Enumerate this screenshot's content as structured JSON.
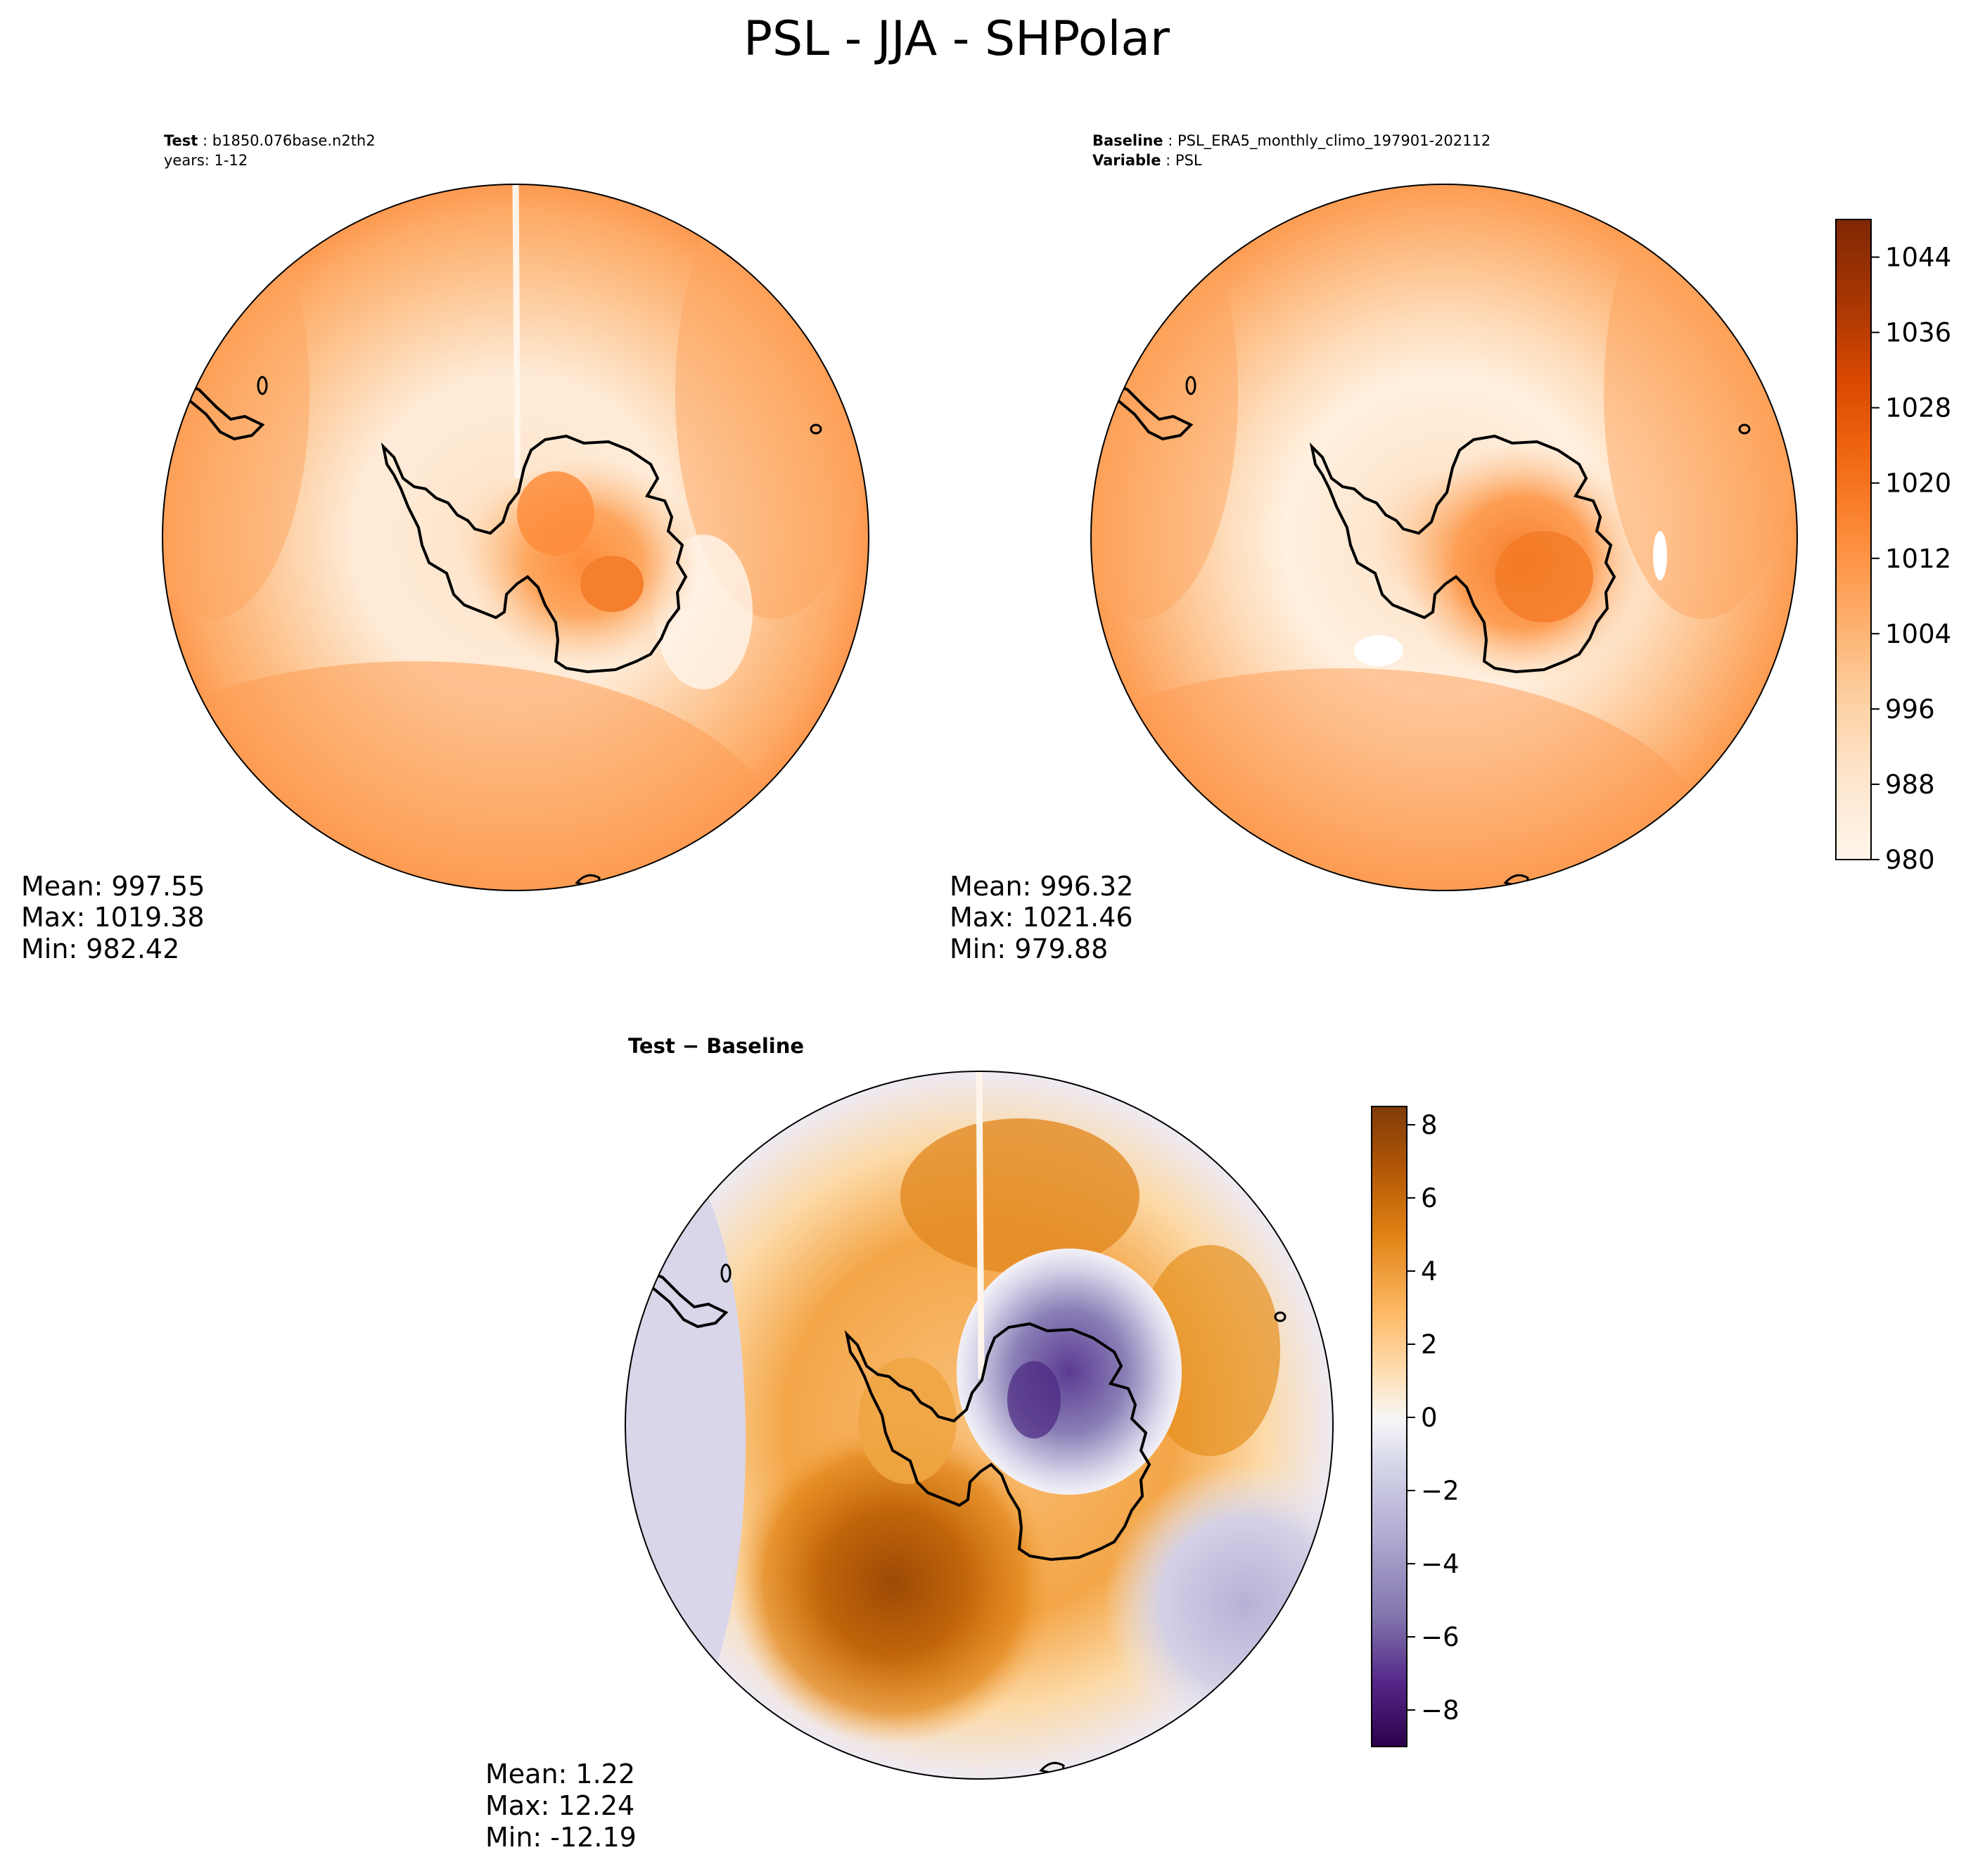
{
  "figure": {
    "title": "PSL - JJA - SHPolar"
  },
  "panels": [
    {
      "id": "test",
      "header_lines": [
        {
          "key": "Test",
          "value": "b1850.076base.n2th2"
        },
        {
          "key": "",
          "value": "years: 1-12"
        }
      ],
      "stats": {
        "mean": "Mean: 997.55",
        "max": "Max: 1019.38",
        "min": "Min: 982.42"
      }
    },
    {
      "id": "baseline",
      "header_lines": [
        {
          "key": "Baseline",
          "value": "PSL_ERA5_monthly_climo_197901-202112"
        },
        {
          "key": "Variable",
          "value": "PSL"
        }
      ],
      "stats": {
        "mean": "Mean: 996.32",
        "max": "Max: 1021.46",
        "min": "Min: 979.88"
      }
    },
    {
      "id": "diff",
      "header_lines": [
        {
          "key": "Test − Baseline",
          "value": ""
        }
      ],
      "stats": {
        "mean": "Mean:  1.22",
        "max": "Max: 12.24",
        "min": "Min: -12.19"
      }
    }
  ],
  "chart_data": [
    {
      "type": "heatmap",
      "projection": "south-polar-stereographic",
      "title": "",
      "colormap": "Oranges",
      "colorbar": {
        "ticks": [
          "980",
          "988",
          "996",
          "1004",
          "1012",
          "1020",
          "1028",
          "1036",
          "1044"
        ],
        "range": [
          980,
          1048
        ],
        "levels": 34
      },
      "field_description_levels_hPa": {
        "outer_ring": 1008,
        "mid_latitudes": 992,
        "interior_antarctica": 1016
      },
      "mean": 997.55,
      "max": 1019.38,
      "min": 982.42
    },
    {
      "type": "heatmap",
      "projection": "south-polar-stereographic",
      "title": "",
      "colormap": "Oranges",
      "colorbar": {
        "ticks": [
          "980",
          "988",
          "996",
          "1004",
          "1012",
          "1020",
          "1028",
          "1036",
          "1044"
        ],
        "range": [
          980,
          1048
        ],
        "levels": 34
      },
      "mean": 996.32,
      "max": 1021.46,
      "min": 979.88
    },
    {
      "type": "heatmap",
      "projection": "south-polar-stereographic",
      "title": "",
      "colormap": "PuOr_r",
      "colorbar": {
        "ticks": [
          "−8",
          "−6",
          "−4",
          "−2",
          "0",
          "2",
          "4",
          "6",
          "8"
        ],
        "range": [
          -9,
          8.5
        ],
        "levels": 35
      },
      "mean": 1.22,
      "max": 12.24,
      "min": -12.19
    }
  ],
  "colors": {
    "oranges": [
      "#fff5eb",
      "#fee6ce",
      "#fdd0a2",
      "#fdae6b",
      "#fd8d3c",
      "#f16913",
      "#d94801",
      "#a63603",
      "#7f2704"
    ],
    "puor": [
      "#2d004b",
      "#542788",
      "#8073ac",
      "#b2abd2",
      "#d8daeb",
      "#f7f7f7",
      "#fee0b6",
      "#fdb863",
      "#e08214",
      "#b35806",
      "#7f3b08"
    ]
  }
}
